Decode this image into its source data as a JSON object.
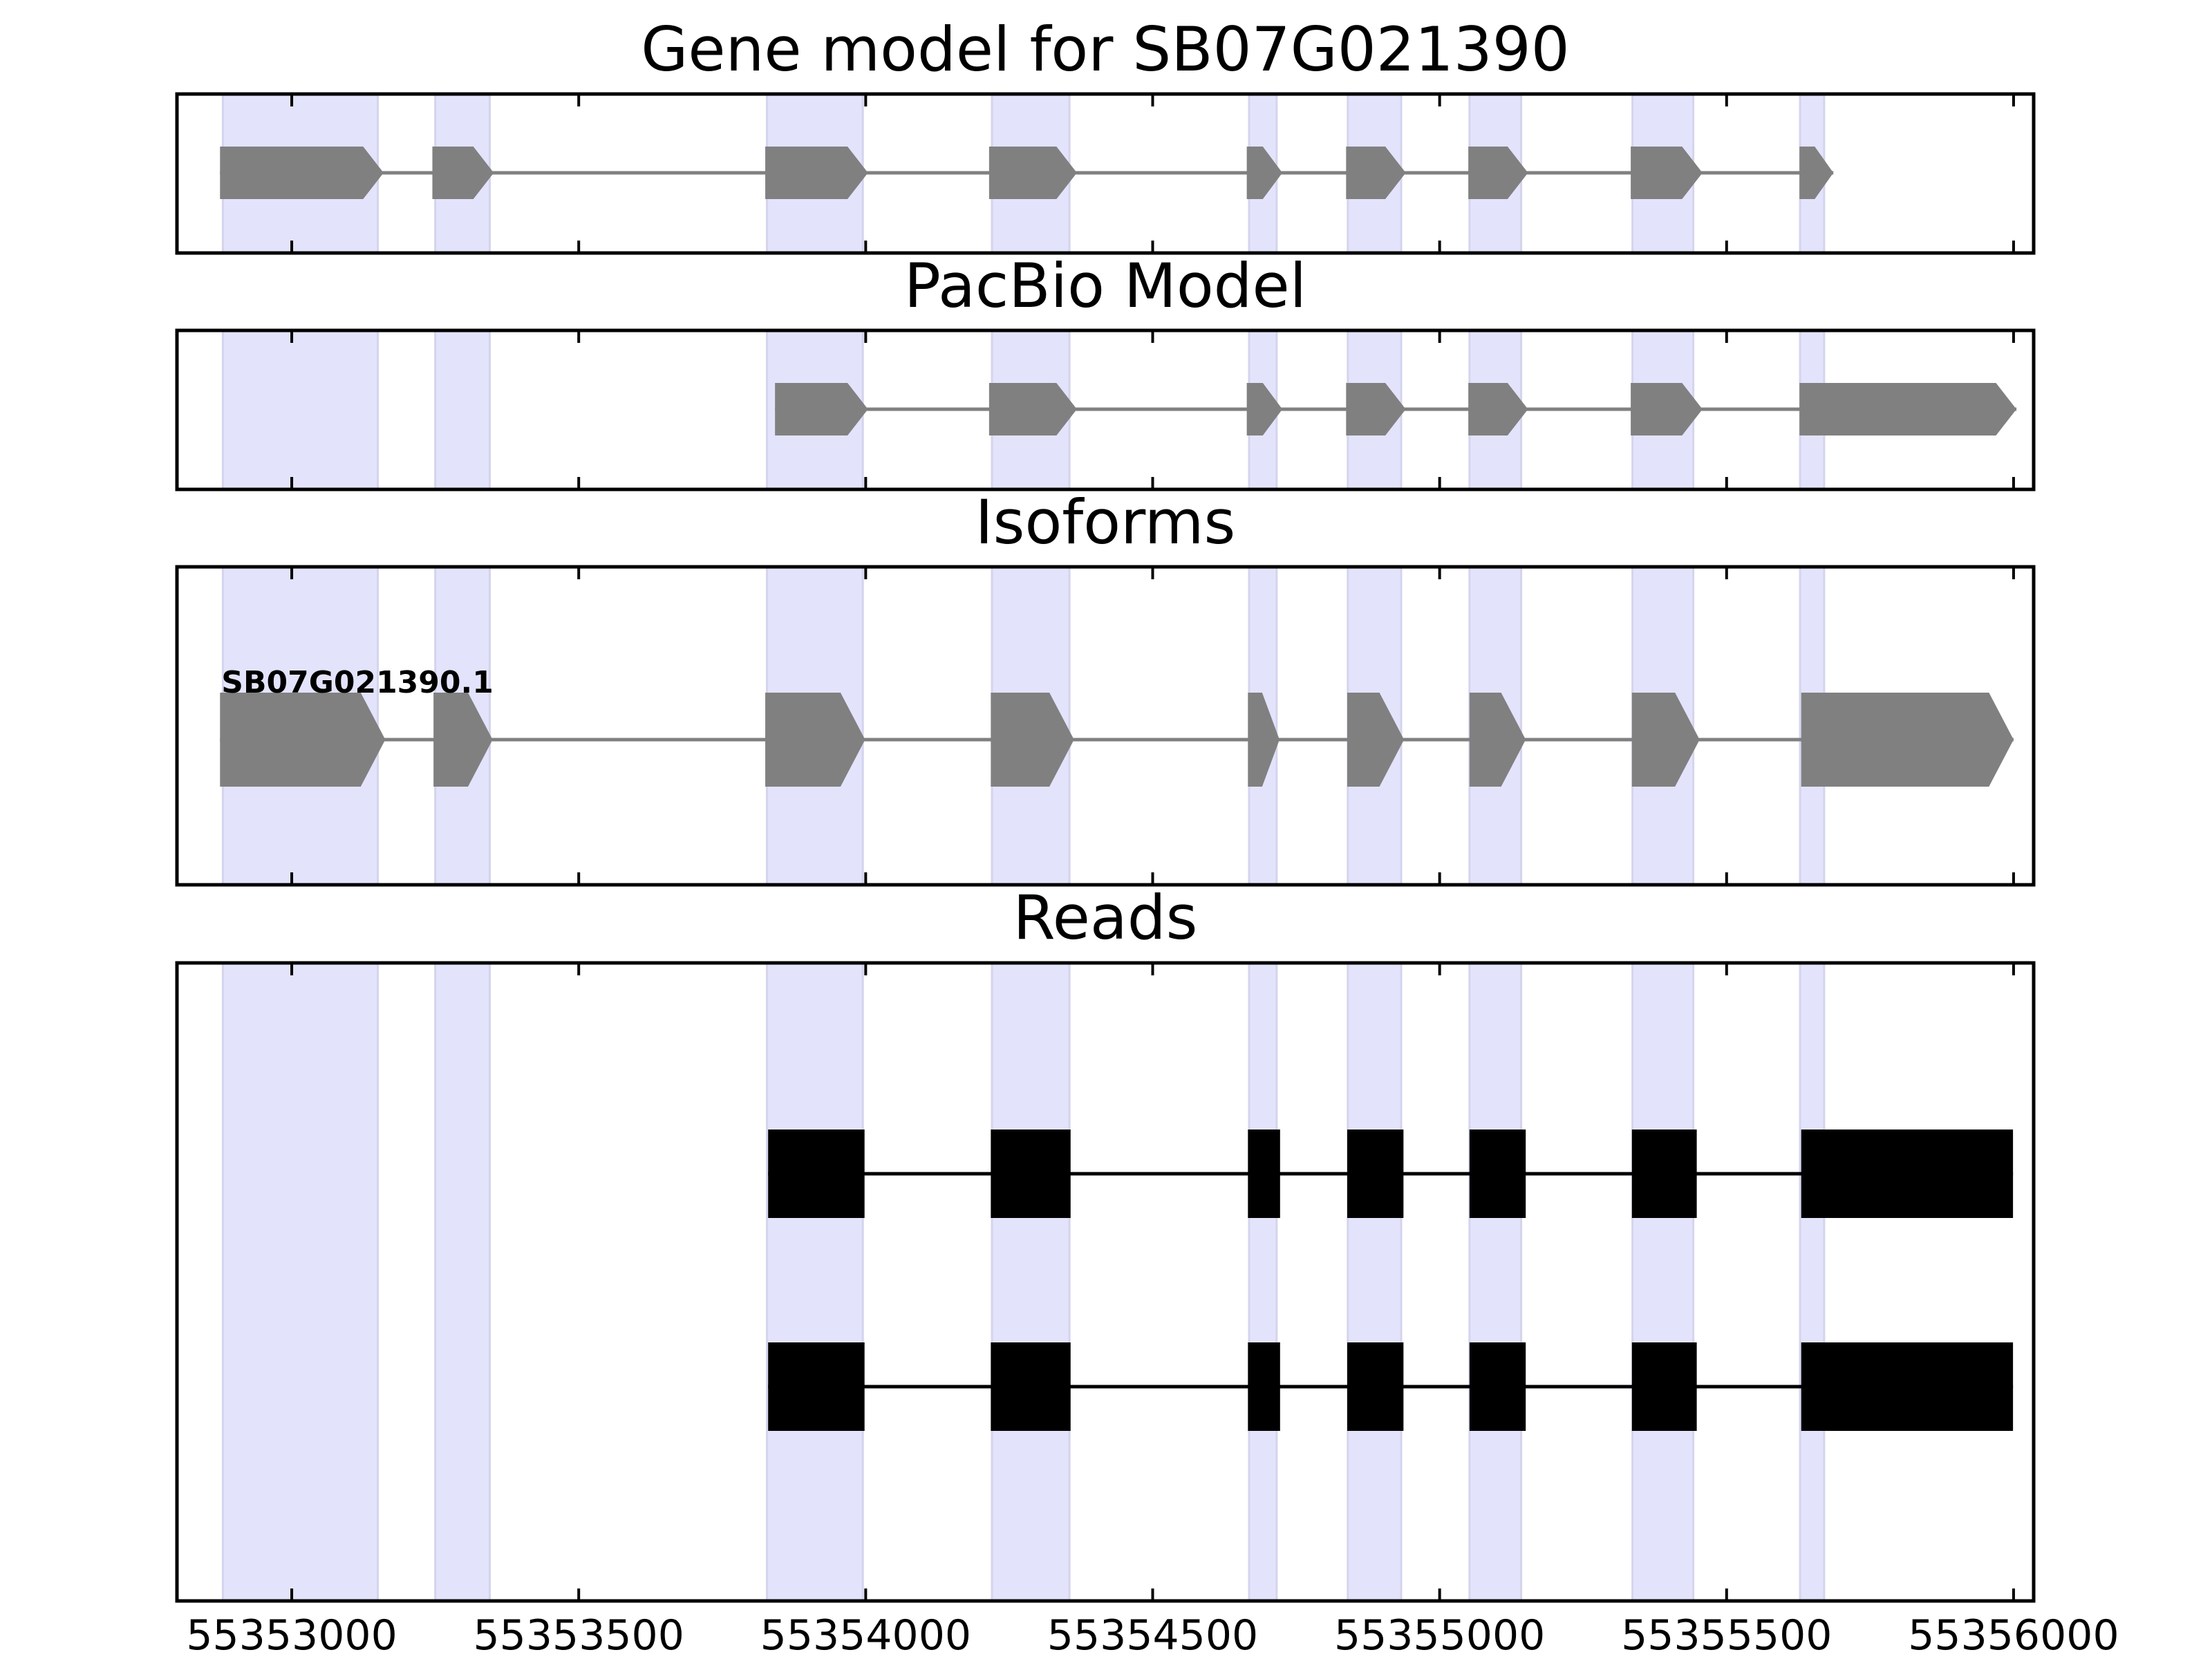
{
  "chart_data": {
    "type": "gene-track",
    "x_range": [
      55352800,
      55356035
    ],
    "x_ticks": [
      55353000,
      55353500,
      55354000,
      55354500,
      55355000,
      55355500,
      55356000
    ],
    "x_tick_labels": [
      "55353000",
      "55353500",
      "55354000",
      "55354500",
      "55355000",
      "55355500",
      "55356000"
    ],
    "highlight_regions": [
      [
        55352880,
        55353150
      ],
      [
        55353250,
        55353345
      ],
      [
        55353828,
        55353995
      ],
      [
        55354220,
        55354355
      ],
      [
        55354668,
        55354716
      ],
      [
        55354840,
        55354933
      ],
      [
        55355052,
        55355142
      ],
      [
        55355336,
        55355442
      ],
      [
        55355628,
        55355670
      ]
    ],
    "panels": [
      {
        "id": "gene-model",
        "title": "Gene model for SB07G021390",
        "style": "arrow-gray",
        "tracks": [
          {
            "label": "",
            "exons": [
              [
                55352875,
                55353160
              ],
              [
                55353245,
                55353352
              ],
              [
                55353825,
                55354004
              ],
              [
                55354215,
                55354368
              ],
              [
                55354664,
                55354726
              ],
              [
                55354837,
                55354941
              ],
              [
                55355050,
                55355154
              ],
              [
                55355333,
                55355458
              ],
              [
                55355627,
                55355686
              ]
            ]
          }
        ]
      },
      {
        "id": "pacbio-model",
        "title": "PacBio Model",
        "style": "arrow-gray",
        "tracks": [
          {
            "label": "",
            "exons": [
              [
                55353842,
                55354004
              ],
              [
                55354215,
                55354368
              ],
              [
                55354664,
                55354726
              ],
              [
                55354837,
                55354941
              ],
              [
                55355050,
                55355154
              ],
              [
                55355333,
                55355458
              ],
              [
                55355627,
                55356005
              ]
            ]
          }
        ]
      },
      {
        "id": "isoforms",
        "title": "Isoforms",
        "style": "arrow-gray",
        "tracks": [
          {
            "label": "SB07G021390.1",
            "exons": [
              [
                55352875,
                55353163
              ],
              [
                55353247,
                55353350
              ],
              [
                55353825,
                55353999
              ],
              [
                55354218,
                55354363
              ],
              [
                55354666,
                55354721
              ],
              [
                55354839,
                55354938
              ],
              [
                55355052,
                55355150
              ],
              [
                55355335,
                55355453
              ],
              [
                55355630,
                55356000
              ]
            ]
          }
        ]
      },
      {
        "id": "reads",
        "title": "Reads",
        "style": "box-black",
        "tracks": [
          {
            "label": "",
            "exons": [
              [
                55353830,
                55353998
              ],
              [
                55354218,
                55354357
              ],
              [
                55354666,
                55354722
              ],
              [
                55354839,
                55354937
              ],
              [
                55355052,
                55355150
              ],
              [
                55355335,
                55355448
              ],
              [
                55355630,
                55355999
              ]
            ]
          },
          {
            "label": "",
            "exons": [
              [
                55353830,
                55353998
              ],
              [
                55354218,
                55354357
              ],
              [
                55354666,
                55354722
              ],
              [
                55354839,
                55354937
              ],
              [
                55355052,
                55355150
              ],
              [
                55355335,
                55355448
              ],
              [
                55355630,
                55355999
              ]
            ]
          }
        ]
      }
    ]
  }
}
